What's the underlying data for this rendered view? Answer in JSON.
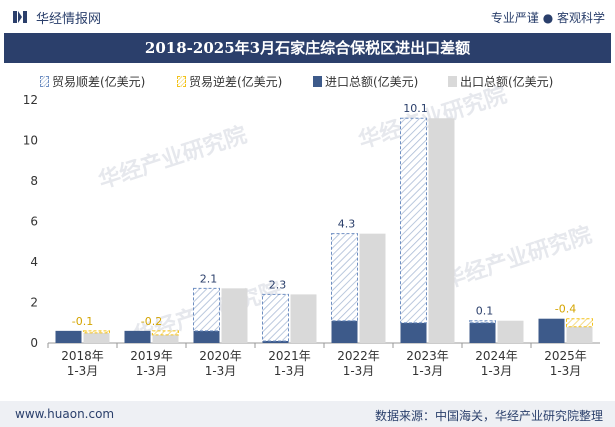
{
  "header": {
    "brand": "华经情报网",
    "tagline": "专业严谨 ● 客观科学"
  },
  "footer": {
    "url": "www.huaon.com",
    "source": "数据来源：中国海关，华经产业研究院整理"
  },
  "watermark": {
    "cn": "华经产业研究院",
    "url": "www.huaon.com"
  },
  "colors": {
    "title_bg": "#2b3f6b",
    "import": "#3d5a8a",
    "export": "#d9d9d9",
    "surplus_stroke": "#6f8fc2",
    "deficit_stroke": "#f3c21b",
    "deficit_label": "#d4a400",
    "surplus_label": "#2b3f6b"
  },
  "chart_data": {
    "type": "bar",
    "title": "2018-2025年3月石家庄综合保税区进出口差额",
    "categories": [
      "2018年\n1-3月",
      "2019年\n1-3月",
      "2020年\n1-3月",
      "2021年\n1-3月",
      "2022年\n1-3月",
      "2023年\n1-3月",
      "2024年\n1-3月",
      "2025年\n1-3月"
    ],
    "series": [
      {
        "name": "贸易顺差(亿美元)",
        "values": [
          null,
          null,
          2.1,
          2.3,
          4.3,
          10.1,
          0.1,
          null
        ]
      },
      {
        "name": "贸易逆差(亿美元)",
        "values": [
          -0.1,
          -0.2,
          null,
          null,
          null,
          null,
          null,
          -0.4
        ]
      },
      {
        "name": "进口总额(亿美元)",
        "values": [
          0.6,
          0.6,
          0.6,
          0.1,
          1.1,
          1.0,
          1.0,
          1.2
        ]
      },
      {
        "name": "出口总额(亿美元)",
        "values": [
          0.5,
          0.4,
          2.7,
          2.4,
          5.4,
          11.1,
          1.1,
          0.8
        ]
      }
    ],
    "ylim": [
      0,
      12
    ],
    "yticks": [
      0,
      2,
      4,
      6,
      8,
      10,
      12
    ],
    "grid": false,
    "legend_position": "top-left"
  }
}
